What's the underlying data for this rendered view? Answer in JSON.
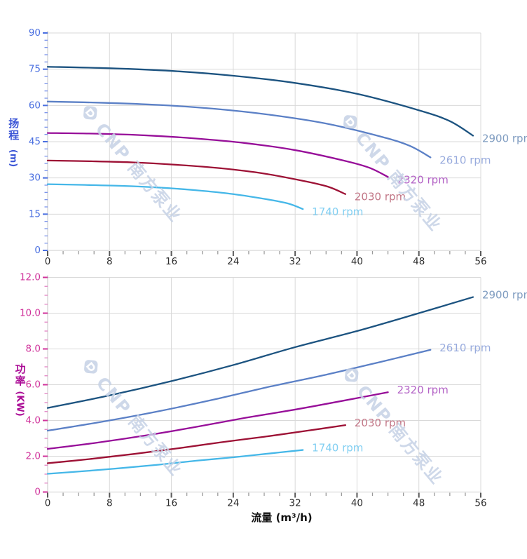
{
  "watermark": {
    "text": "CNP 南方泵业",
    "color": "#c6d2e6"
  },
  "x_axis": {
    "title": "流量 (m³/h)",
    "min": 0,
    "max": 56,
    "major_tick_step": 8,
    "minor_tick_step": 2,
    "tick_labels": [
      "0",
      "8",
      "16",
      "24",
      "32",
      "40",
      "48",
      "56"
    ],
    "tick_label_color": "#2d2d2d"
  },
  "chart_data": [
    {
      "type": "line",
      "title": "",
      "ylabel_cn": "扬程",
      "ylabel_unit": "(m)",
      "ylabel_color": "#3b55d6",
      "tick_label_color": "#4a6fe0",
      "minor_tick_color": "#7a93ea",
      "ylim": [
        0,
        90
      ],
      "y_major_step": 15,
      "y_minor_step": 3,
      "y_tick_labels": [
        "0",
        "15",
        "30",
        "45",
        "60",
        "75",
        "90"
      ],
      "xlim": [
        0,
        56
      ],
      "grid": true,
      "legend_position": "right-of-curve-end",
      "series": [
        {
          "name": "2900 rpm",
          "color": "#1c5380",
          "label_color": "#7f9cc0",
          "points": [
            [
              0,
              76
            ],
            [
              8,
              75.4
            ],
            [
              16,
              74.3
            ],
            [
              24,
              72.3
            ],
            [
              32,
              69.3
            ],
            [
              40,
              64.8
            ],
            [
              48,
              58
            ],
            [
              52,
              53.5
            ],
            [
              55,
              47.5
            ]
          ]
        },
        {
          "name": "2610 rpm",
          "color": "#5b80c6",
          "label_color": "#98abdd",
          "points": [
            [
              0,
              61.6
            ],
            [
              7.2,
              61.1
            ],
            [
              14.4,
              60.2
            ],
            [
              21.6,
              58.6
            ],
            [
              28.8,
              56.1
            ],
            [
              36,
              52.5
            ],
            [
              43.2,
              47
            ],
            [
              46.8,
              43.3
            ],
            [
              49.5,
              38.5
            ]
          ]
        },
        {
          "name": "2320 rpm",
          "color": "#970e99",
          "label_color": "#b363c6",
          "points": [
            [
              0,
              48.6
            ],
            [
              6.4,
              48.3
            ],
            [
              12.8,
              47.6
            ],
            [
              19.2,
              46.3
            ],
            [
              25.6,
              44.4
            ],
            [
              32,
              41.5
            ],
            [
              38.4,
              37.1
            ],
            [
              41.6,
              34.2
            ],
            [
              44,
              30.4
            ]
          ]
        },
        {
          "name": "2030 rpm",
          "color": "#9d1135",
          "label_color": "#c27787",
          "points": [
            [
              0,
              37.2
            ],
            [
              5.6,
              36.9
            ],
            [
              11.2,
              36.4
            ],
            [
              16.8,
              35.4
            ],
            [
              22.4,
              34
            ],
            [
              28,
              31.8
            ],
            [
              33.6,
              28.4
            ],
            [
              36.4,
              26.2
            ],
            [
              38.5,
              23.3
            ]
          ]
        },
        {
          "name": "1740 rpm",
          "color": "#45b7e8",
          "label_color": "#82cff2",
          "points": [
            [
              0,
              27.4
            ],
            [
              4.8,
              27.1
            ],
            [
              9.6,
              26.7
            ],
            [
              14.4,
              26
            ],
            [
              19.2,
              24.9
            ],
            [
              24,
              23.3
            ],
            [
              28.8,
              20.9
            ],
            [
              31.2,
              19.3
            ],
            [
              33,
              17.1
            ]
          ]
        }
      ]
    },
    {
      "type": "line",
      "title": "",
      "ylabel_cn": "功率",
      "ylabel_unit": "(KW)",
      "ylabel_color": "#ab0d96",
      "tick_label_color": "#d0339b",
      "minor_tick_color": "#e283c4",
      "ylim": [
        0,
        12
      ],
      "y_major_step": 2,
      "y_minor_step": 0.5,
      "y_tick_labels": [
        "0",
        "2.0",
        "4.0",
        "6.0",
        "8.0",
        "10.0",
        "12.0"
      ],
      "xlim": [
        0,
        56
      ],
      "grid": true,
      "legend_position": "right-of-curve-end",
      "series": [
        {
          "name": "2900 rpm",
          "color": "#1c5380",
          "label_color": "#7f9cc0",
          "points": [
            [
              0,
              4.7
            ],
            [
              8,
              5.4
            ],
            [
              16,
              6.2
            ],
            [
              24,
              7.1
            ],
            [
              32,
              8.1
            ],
            [
              40,
              9
            ],
            [
              48,
              10
            ],
            [
              55,
              10.9
            ]
          ]
        },
        {
          "name": "2610 rpm",
          "color": "#5b80c6",
          "label_color": "#98abdd",
          "points": [
            [
              0,
              3.43
            ],
            [
              7.2,
              3.94
            ],
            [
              14.4,
              4.52
            ],
            [
              21.6,
              5.18
            ],
            [
              28.8,
              5.9
            ],
            [
              36,
              6.56
            ],
            [
              43.2,
              7.29
            ],
            [
              49.5,
              7.95
            ]
          ]
        },
        {
          "name": "2320 rpm",
          "color": "#970e99",
          "label_color": "#b363c6",
          "points": [
            [
              0,
              2.41
            ],
            [
              6.4,
              2.76
            ],
            [
              12.8,
              3.17
            ],
            [
              19.2,
              3.64
            ],
            [
              25.6,
              4.15
            ],
            [
              32,
              4.61
            ],
            [
              38.4,
              5.12
            ],
            [
              44,
              5.58
            ]
          ]
        },
        {
          "name": "2030 rpm",
          "color": "#9d1135",
          "label_color": "#c27787",
          "points": [
            [
              0,
              1.61
            ],
            [
              5.6,
              1.85
            ],
            [
              11.2,
              2.13
            ],
            [
              16.8,
              2.44
            ],
            [
              22.4,
              2.78
            ],
            [
              28,
              3.09
            ],
            [
              33.6,
              3.43
            ],
            [
              38.5,
              3.74
            ]
          ]
        },
        {
          "name": "1740 rpm",
          "color": "#45b7e8",
          "label_color": "#82cff2",
          "points": [
            [
              0,
              1.02
            ],
            [
              4.8,
              1.17
            ],
            [
              9.6,
              1.34
            ],
            [
              14.4,
              1.53
            ],
            [
              19.2,
              1.75
            ],
            [
              24,
              1.94
            ],
            [
              28.8,
              2.16
            ],
            [
              33,
              2.35
            ]
          ]
        }
      ]
    }
  ]
}
